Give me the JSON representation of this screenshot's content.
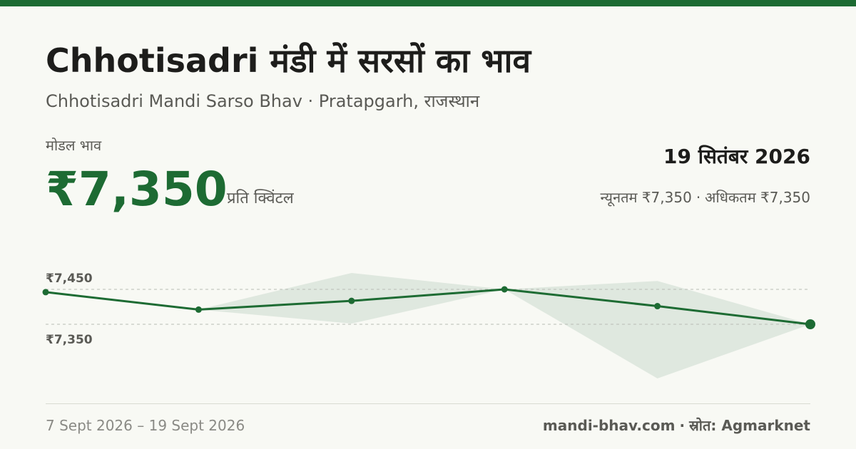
{
  "title": "Chhotisadri मंडी में सरसों का भाव",
  "subtitle": "Chhotisadri Mandi Sarso Bhav · Pratapgarh, राजस्थान",
  "modal_label": "मोडल भाव",
  "modal_price": "₹7,350",
  "unit": "प्रति क्विंटल",
  "date": "19 सितंबर 2026",
  "min_label": "न्यूनतम ₹7,350",
  "max_label": "अधिकतम ₹7,350",
  "separator": "·",
  "footer": {
    "period": "7 Sept 2026 – 19 Sept 2026",
    "site": "mandi-bhav.com",
    "source": "स्रोत: Agmarknet"
  },
  "colors": {
    "accent": "#1d6b33",
    "band": "#dfe8df",
    "grid": "#b9bdb4",
    "tick_text": "#5a5a55"
  },
  "chart_data": {
    "type": "line",
    "series": [
      {
        "values": [
          7442,
          7392,
          7417,
          7450,
          7402,
          7350
        ]
      }
    ],
    "band": {
      "upper": [
        7442,
        7392,
        7497,
        7450,
        7474,
        7350
      ],
      "lower": [
        7442,
        7392,
        7352,
        7450,
        7195,
        7350
      ]
    },
    "yticks": [
      7450,
      7350
    ],
    "ytick_labels": [
      "₹7,450",
      "₹7,350"
    ],
    "grid": "dashed-horizontal"
  }
}
